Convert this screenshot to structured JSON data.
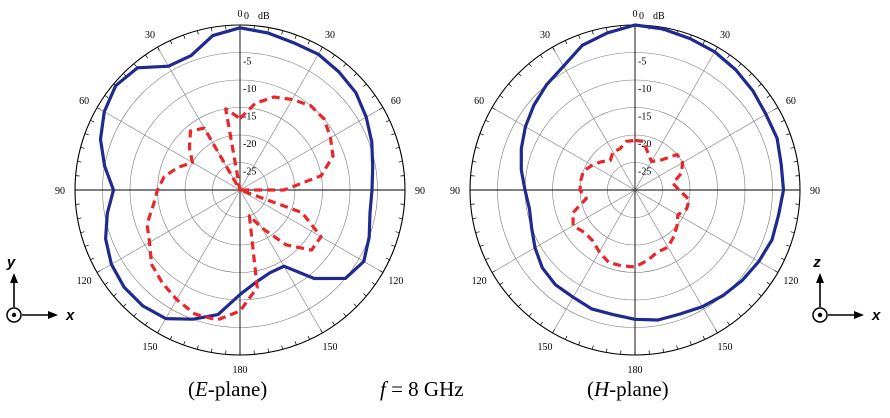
{
  "colors": {
    "co_pol": "#1f2a8f",
    "cross_pol": "#e8262b",
    "grid": "#7a7a7a",
    "axis": "#000000"
  },
  "captions": {
    "e_plane_prefix": "(",
    "e_plane_letter": "E",
    "e_plane_suffix": "-plane)",
    "freq_var": "f",
    "freq_text": " = 8 GHz",
    "h_plane_prefix": "(",
    "h_plane_letter": "H",
    "h_plane_suffix": "-plane)"
  },
  "axes_icons": [
    {
      "up": "y",
      "right": "x"
    },
    {
      "up": "z",
      "right": "x"
    }
  ],
  "chart_data": [
    {
      "type": "polar",
      "title": "E-plane",
      "radial_unit": "dB",
      "radial_range": [
        -30,
        0
      ],
      "radial_ticks": [
        0,
        -5,
        -10,
        -15,
        -20,
        -25
      ],
      "angle_tick_labels": [
        "0",
        "30",
        "60",
        "90",
        "120",
        "150",
        "180",
        "150",
        "120",
        "90",
        "60",
        "30"
      ],
      "series": [
        {
          "style": "solid",
          "theta": [
            0,
            10,
            20,
            30,
            40,
            50,
            60,
            70,
            80,
            90,
            100,
            110,
            120,
            130,
            140,
            150,
            160,
            170,
            180,
            190,
            200,
            210,
            220,
            230,
            240,
            250,
            260,
            270,
            280,
            290,
            300,
            310,
            320,
            330,
            340,
            350
          ],
          "r_db": [
            -0.5,
            -1,
            -1.5,
            -1.5,
            -2,
            -2.5,
            -3.5,
            -4.5,
            -5.5,
            -6,
            -6,
            -5,
            -4,
            -5,
            -9,
            -14,
            -14,
            -13,
            -11,
            -7,
            -5,
            -3,
            -2.5,
            -2.5,
            -3,
            -4,
            -5.5,
            -7,
            -5,
            -3,
            -1.5,
            -0.5,
            -1,
            -4,
            -4,
            -1.5
          ]
        },
        {
          "style": "dashed",
          "theta": [
            0,
            10,
            20,
            30,
            40,
            50,
            60,
            70,
            80,
            90,
            100,
            110,
            120,
            130,
            140,
            150,
            160,
            170,
            180,
            190,
            200,
            210,
            220,
            230,
            240,
            250,
            260,
            270,
            280,
            290,
            300,
            310,
            320,
            330,
            340,
            350
          ],
          "r_db": [
            -17,
            -14,
            -12,
            -11,
            -10,
            -10,
            -11,
            -12,
            -15,
            -22,
            -30,
            -18,
            -13,
            -13,
            -17,
            -22,
            -25,
            -12,
            -8,
            -6,
            -6,
            -7,
            -8,
            -9,
            -11,
            -12,
            -14,
            -15,
            -16,
            -18,
            -20,
            -18,
            -16,
            -17,
            -30,
            -15
          ]
        }
      ]
    },
    {
      "type": "polar",
      "title": "H-plane",
      "radial_unit": "dB",
      "radial_range": [
        -30,
        0
      ],
      "radial_ticks": [
        0,
        -5,
        -10,
        -15,
        -20,
        -25
      ],
      "angle_tick_labels": [
        "0",
        "30",
        "60",
        "90",
        "120",
        "150",
        "180",
        "150",
        "120",
        "90",
        "60",
        "30"
      ],
      "series": [
        {
          "style": "solid",
          "theta": [
            0,
            10,
            20,
            30,
            40,
            50,
            60,
            70,
            80,
            90,
            100,
            110,
            120,
            130,
            140,
            150,
            160,
            170,
            180,
            190,
            200,
            210,
            220,
            230,
            240,
            250,
            260,
            270,
            280,
            290,
            300,
            310,
            320,
            330,
            340,
            350
          ],
          "r_db": [
            0,
            -0.3,
            -0.7,
            -1,
            -1.5,
            -2,
            -2.5,
            -2.5,
            -3,
            -3,
            -3.5,
            -3.5,
            -4,
            -4.5,
            -5,
            -5.5,
            -6,
            -6,
            -6.5,
            -7,
            -7,
            -7.5,
            -7.5,
            -8,
            -9,
            -10,
            -10.5,
            -10,
            -9,
            -8,
            -7,
            -6,
            -5,
            -4,
            -2,
            -1
          ]
        },
        {
          "style": "dashed",
          "theta": [
            0,
            10,
            20,
            30,
            40,
            50,
            60,
            70,
            80,
            90,
            100,
            110,
            120,
            130,
            140,
            150,
            160,
            170,
            180,
            190,
            200,
            210,
            220,
            230,
            240,
            250,
            260,
            270,
            280,
            290,
            300,
            310,
            320,
            330,
            340,
            350
          ],
          "r_db": [
            -21,
            -21,
            -23,
            -24,
            -23,
            -20,
            -20,
            -21,
            -23,
            -22,
            -20,
            -20,
            -21,
            -20,
            -19,
            -18,
            -18,
            -17,
            -16,
            -16,
            -16,
            -17,
            -18,
            -18,
            -17,
            -18,
            -21,
            -20,
            -20,
            -20,
            -21,
            -22,
            -23,
            -22,
            -22,
            -21
          ]
        }
      ]
    }
  ]
}
